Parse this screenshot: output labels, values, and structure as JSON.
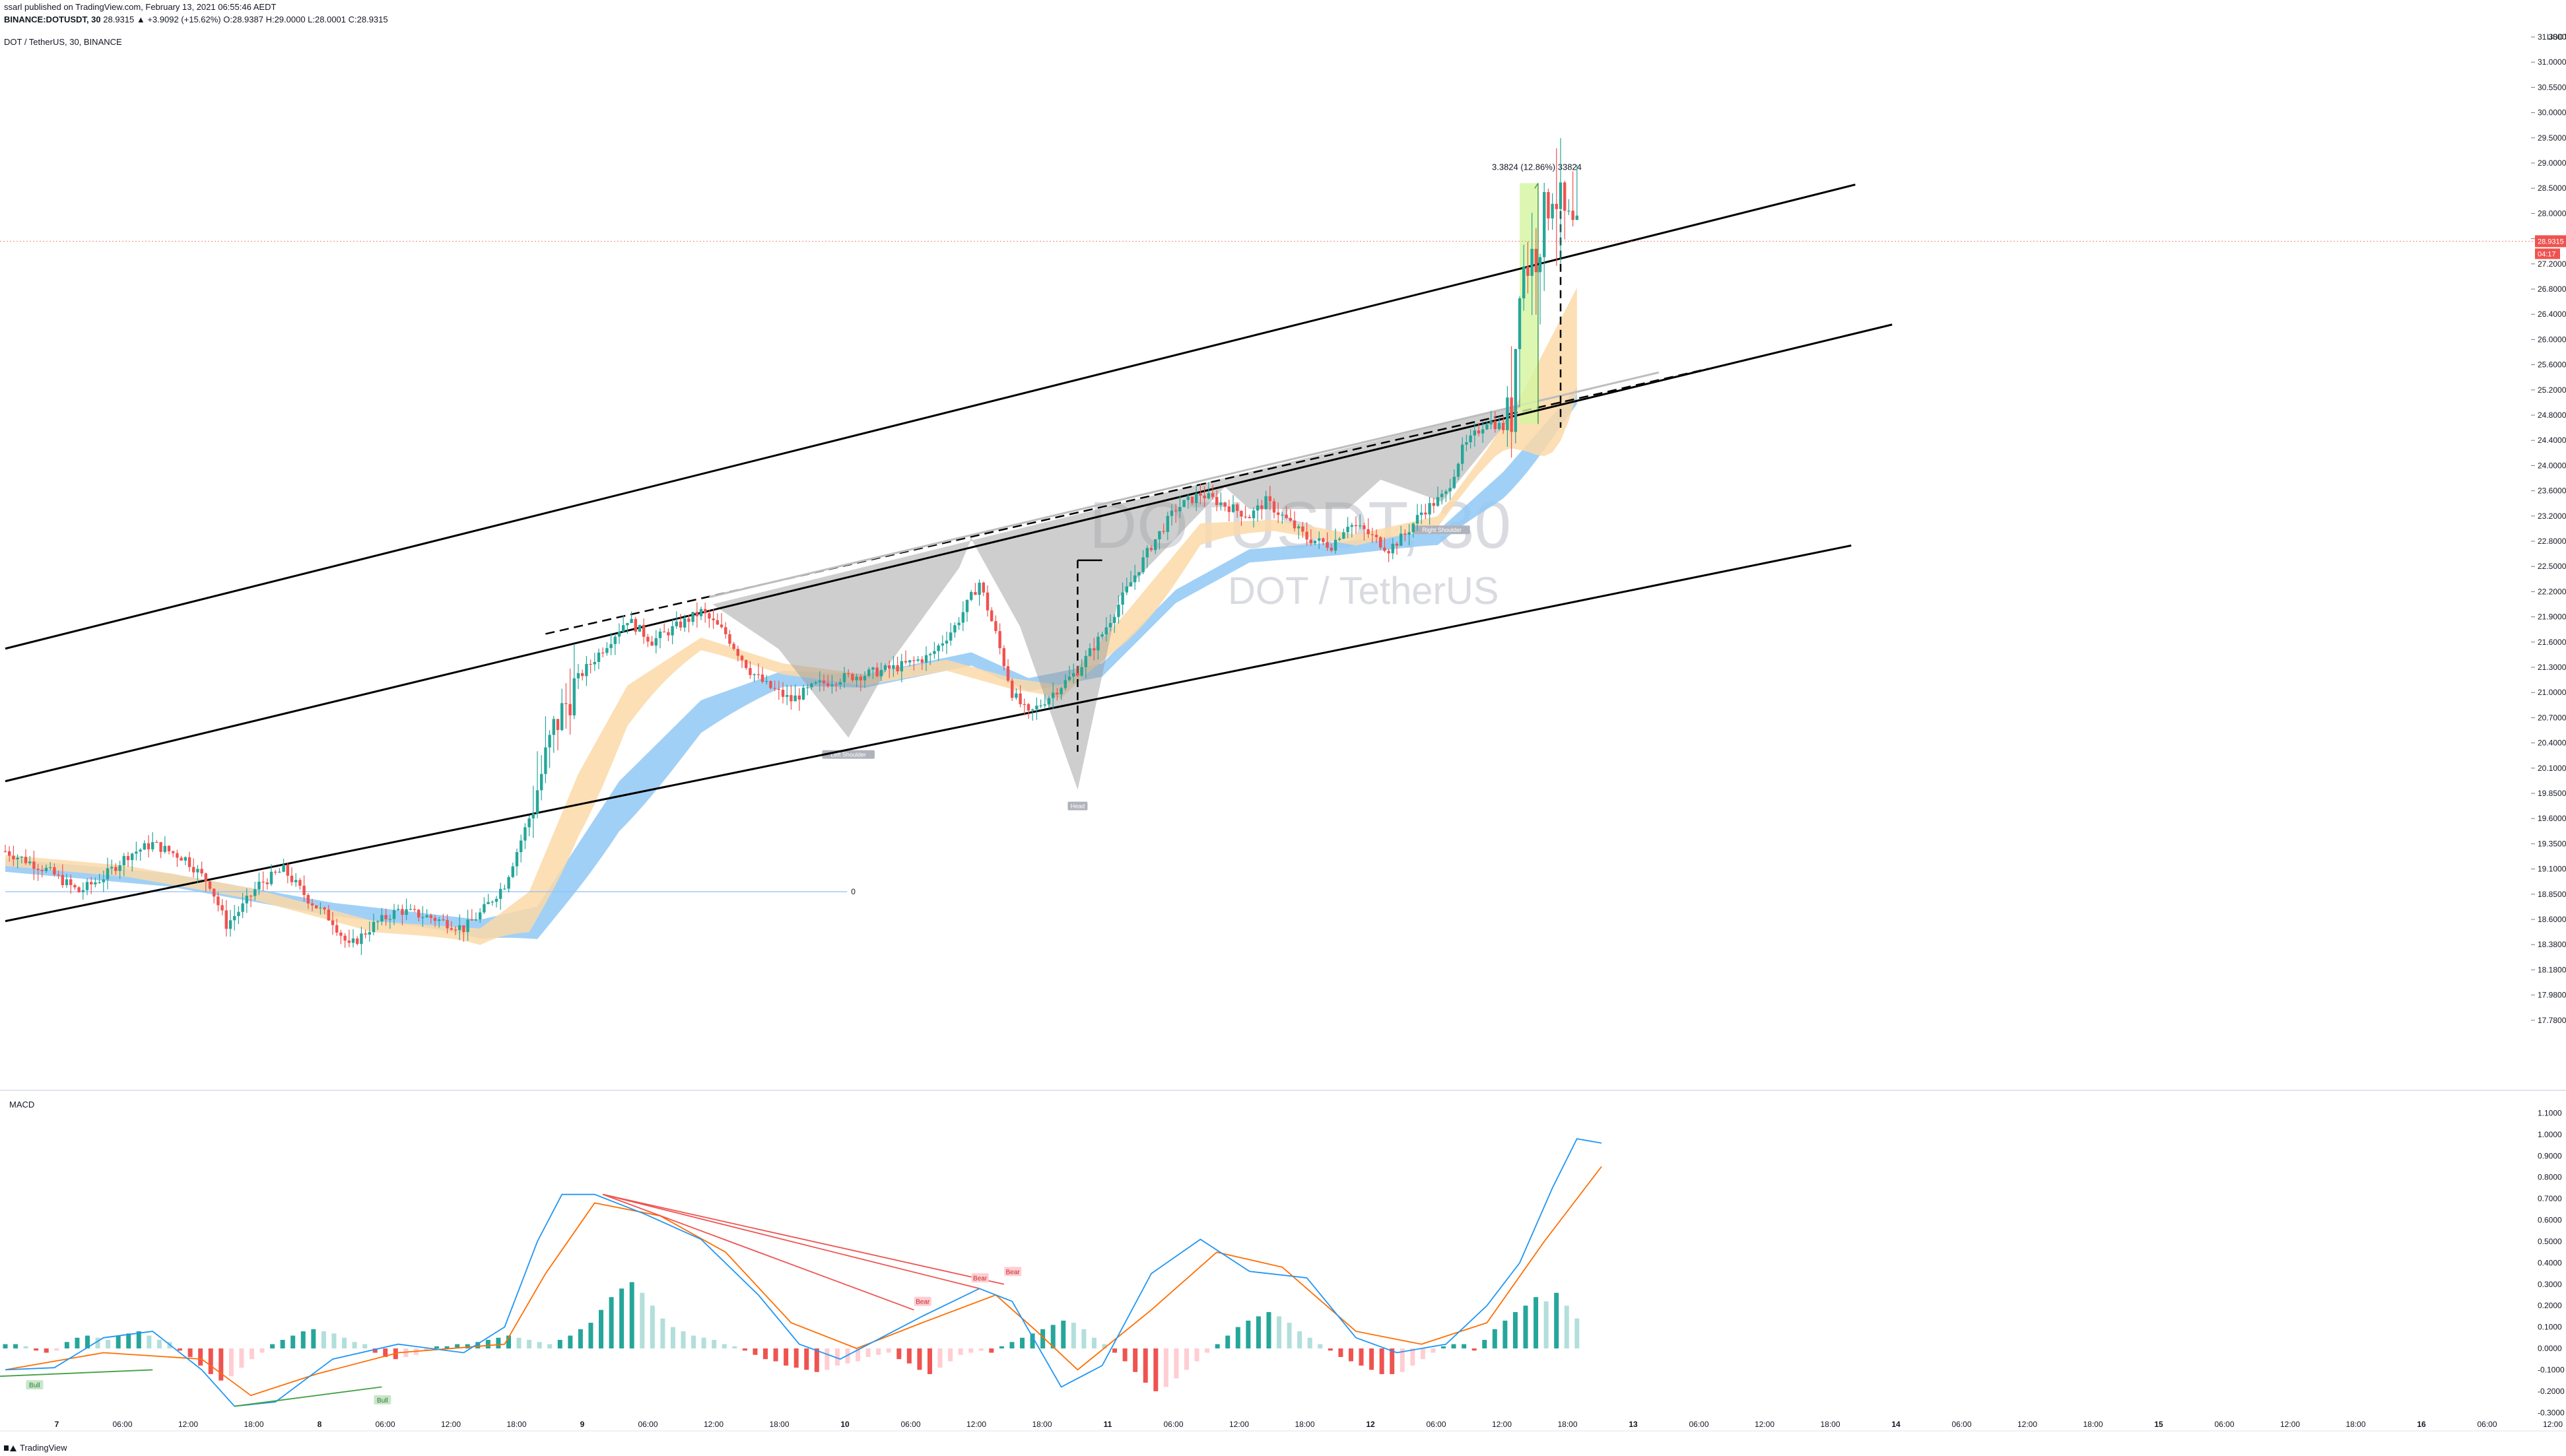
{
  "header": {
    "published": "ssarl published on TradingView.com, February 13, 2021 06:55:46 AEDT",
    "symbol": "BINANCE:DOTUSDT, 30",
    "ohlc": "28.9315 ▲ +3.9092 (+15.62%) O:28.9387 H:29.0000 L:28.0001 C:28.9315",
    "pane_title": "DOT / TetherUS, 30, BINANCE"
  },
  "watermark": {
    "symbol": "DOTUSDT, 30",
    "name": "DOT / TetherUS"
  },
  "currency": "USDT",
  "price_tag": "28.9315",
  "countdown_tag": "04:17",
  "measure_label": "3.3824 (12.86%) 33824",
  "fib_label": "0",
  "pattern_labels": {
    "left": "Left Shoulder",
    "head": "Head",
    "right": "Right Shoulder"
  },
  "divergence_labels": {
    "bull": "Bull",
    "bear": "Bear"
  },
  "macd_title": "MACD",
  "footer": "TradingView",
  "colors": {
    "up": "#26a69a",
    "down": "#ef5350",
    "ema_band_fast": "#fbd9a8",
    "ema_band_slow": "#90c8f5",
    "macd_line": "#2196f3",
    "signal_line": "#ff6d00",
    "hist_up_strong": "#26a69a",
    "hist_up_weak": "#b2dfdb",
    "hist_dn_strong": "#ef5350",
    "hist_dn_weak": "#ffcdd2",
    "channel": "#000000",
    "pattern_fill": "#9e9e9e",
    "measure_fill": "#d4f5a0"
  },
  "chart_data": [
    {
      "type": "candlestick",
      "title": "DOT / TetherUS, 30, BINANCE",
      "ylim": [
        17.6,
        31.4
      ],
      "y_ticks": [
        "31.3000",
        "31.0000",
        "30.5500",
        "30.0000",
        "29.5000",
        "29.0000",
        "28.5000",
        "28.0000",
        "27.6000",
        "27.2000",
        "26.8000",
        "26.4000",
        "26.0000",
        "25.6000",
        "25.2000",
        "24.8000",
        "24.4000",
        "24.0000",
        "23.6000",
        "23.2000",
        "22.8000",
        "22.5000",
        "22.2000",
        "21.9000",
        "21.6000",
        "21.3000",
        "21.0000",
        "20.7000",
        "20.4000",
        "20.1000",
        "19.8500",
        "19.6000",
        "19.3500",
        "19.1000",
        "18.8500",
        "18.6000",
        "18.3800",
        "18.1800",
        "17.9800",
        "17.7800"
      ],
      "x_ticks": [
        "7",
        "06:00",
        "12:00",
        "18:00",
        "8",
        "06:00",
        "12:00",
        "18:00",
        "9",
        "06:00",
        "12:00",
        "18:00",
        "10",
        "06:00",
        "12:00",
        "18:00",
        "11",
        "06:00",
        "12:00",
        "18:00",
        "12",
        "06:00",
        "12:00",
        "18:00",
        "13",
        "06:00",
        "12:00",
        "18:00",
        "14",
        "06:00",
        "12:00",
        "18:00",
        "15",
        "06:00",
        "12:00",
        "18:00",
        "16",
        "06:00",
        "12:00"
      ],
      "price_path": [
        [
          0,
          20.65
        ],
        [
          10,
          20.4
        ],
        [
          18,
          20.1
        ],
        [
          24,
          20.3
        ],
        [
          30,
          20.6
        ],
        [
          36,
          20.75
        ],
        [
          44,
          20.55
        ],
        [
          50,
          20.2
        ],
        [
          54,
          19.65
        ],
        [
          58,
          19.9
        ],
        [
          62,
          20.2
        ],
        [
          68,
          20.4
        ],
        [
          74,
          20.0
        ],
        [
          80,
          19.7
        ],
        [
          84,
          19.35
        ],
        [
          90,
          19.65
        ],
        [
          96,
          19.85
        ],
        [
          104,
          19.75
        ],
        [
          112,
          19.6
        ],
        [
          116,
          19.8
        ],
        [
          122,
          20.2
        ],
        [
          128,
          21.1
        ],
        [
          134,
          22.3
        ],
        [
          140,
          23.0
        ],
        [
          146,
          23.4
        ],
        [
          152,
          23.8
        ],
        [
          158,
          23.5
        ],
        [
          164,
          23.7
        ],
        [
          170,
          23.9
        ],
        [
          176,
          23.6
        ],
        [
          182,
          23.1
        ],
        [
          186,
          22.9
        ],
        [
          192,
          22.7
        ],
        [
          198,
          22.9
        ],
        [
          204,
          23.0
        ],
        [
          210,
          23.05
        ],
        [
          218,
          23.15
        ],
        [
          226,
          23.3
        ],
        [
          232,
          23.7
        ],
        [
          238,
          24.3
        ],
        [
          242,
          23.6
        ],
        [
          246,
          22.8
        ],
        [
          250,
          22.5
        ],
        [
          254,
          22.7
        ],
        [
          258,
          22.9
        ],
        [
          262,
          23.1
        ],
        [
          268,
          23.6
        ],
        [
          274,
          24.2
        ],
        [
          280,
          24.8
        ],
        [
          286,
          25.3
        ],
        [
          292,
          25.5
        ],
        [
          298,
          25.35
        ],
        [
          304,
          25.2
        ],
        [
          308,
          25.4
        ],
        [
          314,
          25.1
        ],
        [
          318,
          24.9
        ],
        [
          324,
          24.8
        ],
        [
          328,
          25.1
        ],
        [
          332,
          25.0
        ],
        [
          338,
          24.75
        ],
        [
          342,
          24.95
        ],
        [
          346,
          25.25
        ],
        [
          352,
          25.5
        ],
        [
          356,
          26.1
        ],
        [
          362,
          26.5
        ],
        [
          366,
          26.4
        ],
        [
          368,
          26.6
        ],
        [
          370,
          28.5
        ],
        [
          374,
          28.8
        ],
        [
          378,
          29.7
        ],
        [
          381,
          29.2
        ],
        [
          384,
          28.93
        ]
      ],
      "ema_fast_upper": [
        [
          0,
          20.6
        ],
        [
          30,
          20.45
        ],
        [
          60,
          20.15
        ],
        [
          90,
          19.7
        ],
        [
          116,
          19.6
        ],
        [
          128,
          20.1
        ],
        [
          140,
          21.7
        ],
        [
          152,
          22.9
        ],
        [
          170,
          23.55
        ],
        [
          190,
          23.2
        ],
        [
          210,
          23.05
        ],
        [
          230,
          23.25
        ],
        [
          246,
          23.0
        ],
        [
          258,
          22.9
        ],
        [
          274,
          23.9
        ],
        [
          292,
          25.1
        ],
        [
          310,
          25.15
        ],
        [
          330,
          24.95
        ],
        [
          350,
          25.2
        ],
        [
          362,
          26.1
        ],
        [
          370,
          26.8
        ],
        [
          384,
          28.3
        ]
      ],
      "ema_slow_upper": [
        [
          0,
          20.55
        ],
        [
          40,
          20.35
        ],
        [
          80,
          19.95
        ],
        [
          116,
          19.72
        ],
        [
          130,
          19.9
        ],
        [
          150,
          21.6
        ],
        [
          170,
          22.7
        ],
        [
          190,
          23.1
        ],
        [
          210,
          23.05
        ],
        [
          236,
          23.35
        ],
        [
          250,
          23.0
        ],
        [
          268,
          23.2
        ],
        [
          286,
          24.2
        ],
        [
          304,
          24.75
        ],
        [
          326,
          24.85
        ],
        [
          350,
          25.0
        ],
        [
          366,
          25.8
        ],
        [
          384,
          26.95
        ]
      ],
      "channel_lines": [
        {
          "x0": 0,
          "y0": 23.4,
          "x1": 452,
          "y1": 29.7
        },
        {
          "x0": 0,
          "y0": 21.6,
          "x1": 461,
          "y1": 27.8
        },
        {
          "x0": 0,
          "y0": 19.7,
          "x1": 451,
          "y1": 24.8
        }
      ],
      "neckline": {
        "x0": 132,
        "y0": 23.6,
        "x1": 416,
        "y1": 27.2
      },
      "pattern_points": [
        [
          173,
          24.0
        ],
        [
          189,
          23.4
        ],
        [
          206,
          22.2
        ],
        [
          216,
          23.2
        ],
        [
          233,
          24.5
        ],
        [
          236,
          24.9
        ],
        [
          248,
          23.7
        ],
        [
          262,
          21.5
        ],
        [
          272,
          24.1
        ],
        [
          298,
          25.6
        ],
        [
          304,
          25.3
        ],
        [
          328,
          25.3
        ],
        [
          336,
          25.7
        ],
        [
          351,
          25.4
        ],
        [
          370,
          26.7
        ]
      ],
      "measure_box": {
        "x0": 370,
        "x1": 374.5,
        "y0": 26.45,
        "y1": 29.72
      },
      "horizontal_level": {
        "y": 20.1,
        "x0": 0,
        "x1": 196
      },
      "last_price": 28.9315
    },
    {
      "type": "macd",
      "title": "MACD",
      "ylim": [
        -0.33,
        1.12
      ],
      "y_ticks": [
        "1.1000",
        "1.0000",
        "0.9000",
        "0.8000",
        "0.7000",
        "0.6000",
        "0.5000",
        "0.4000",
        "0.3000",
        "0.2000",
        "0.1000",
        "0.0000",
        "-0.1000",
        "-0.2000",
        "-0.3000"
      ],
      "macd_path": [
        [
          0,
          -0.1
        ],
        [
          12,
          -0.09
        ],
        [
          24,
          0.05
        ],
        [
          36,
          0.08
        ],
        [
          48,
          -0.1
        ],
        [
          56,
          -0.27
        ],
        [
          66,
          -0.25
        ],
        [
          80,
          -0.05
        ],
        [
          96,
          0.02
        ],
        [
          112,
          -0.02
        ],
        [
          122,
          0.1
        ],
        [
          130,
          0.5
        ],
        [
          136,
          0.72
        ],
        [
          144,
          0.72
        ],
        [
          156,
          0.63
        ],
        [
          170,
          0.51
        ],
        [
          184,
          0.25
        ],
        [
          194,
          0.02
        ],
        [
          204,
          -0.05
        ],
        [
          214,
          0.05
        ],
        [
          224,
          0.15
        ],
        [
          238,
          0.28
        ],
        [
          246,
          0.22
        ],
        [
          258,
          -0.18
        ],
        [
          268,
          -0.08
        ],
        [
          280,
          0.35
        ],
        [
          292,
          0.51
        ],
        [
          304,
          0.36
        ],
        [
          318,
          0.33
        ],
        [
          330,
          0.05
        ],
        [
          340,
          -0.02
        ],
        [
          352,
          0.02
        ],
        [
          362,
          0.2
        ],
        [
          370,
          0.4
        ],
        [
          378,
          0.75
        ],
        [
          384,
          0.98
        ],
        [
          390,
          0.96
        ]
      ],
      "signal_path": [
        [
          0,
          -0.1
        ],
        [
          24,
          -0.02
        ],
        [
          48,
          -0.05
        ],
        [
          60,
          -0.22
        ],
        [
          76,
          -0.12
        ],
        [
          96,
          -0.02
        ],
        [
          122,
          0.02
        ],
        [
          132,
          0.35
        ],
        [
          144,
          0.68
        ],
        [
          160,
          0.62
        ],
        [
          176,
          0.45
        ],
        [
          192,
          0.12
        ],
        [
          208,
          0.0
        ],
        [
          224,
          0.12
        ],
        [
          242,
          0.25
        ],
        [
          252,
          0.08
        ],
        [
          262,
          -0.1
        ],
        [
          280,
          0.18
        ],
        [
          296,
          0.45
        ],
        [
          312,
          0.38
        ],
        [
          330,
          0.08
        ],
        [
          346,
          0.02
        ],
        [
          362,
          0.12
        ],
        [
          376,
          0.5
        ],
        [
          390,
          0.85
        ]
      ],
      "histogram": [
        0.02,
        0.02,
        0.01,
        -0.01,
        -0.02,
        -0.01,
        0.03,
        0.05,
        0.06,
        0.05,
        0.04,
        0.06,
        0.07,
        0.08,
        0.06,
        0.04,
        0.03,
        -0.01,
        -0.04,
        -0.08,
        -0.12,
        -0.15,
        -0.13,
        -0.09,
        -0.05,
        -0.02,
        0.02,
        0.04,
        0.06,
        0.08,
        0.09,
        0.08,
        0.07,
        0.05,
        0.03,
        0.02,
        -0.02,
        -0.04,
        -0.05,
        -0.04,
        -0.03,
        -0.01,
        0.01,
        0.01,
        0.02,
        0.02,
        0.03,
        0.04,
        0.05,
        0.06,
        0.05,
        0.04,
        0.03,
        0.02,
        0.04,
        0.06,
        0.09,
        0.12,
        0.18,
        0.24,
        0.28,
        0.31,
        0.26,
        0.2,
        0.14,
        0.1,
        0.08,
        0.06,
        0.05,
        0.04,
        0.02,
        0.01,
        -0.01,
        -0.03,
        -0.05,
        -0.06,
        -0.08,
        -0.09,
        -0.1,
        -0.11,
        -0.1,
        -0.08,
        -0.07,
        -0.06,
        -0.04,
        -0.03,
        -0.02,
        -0.05,
        -0.07,
        -0.1,
        -0.12,
        -0.09,
        -0.06,
        -0.03,
        -0.02,
        -0.01,
        -0.02,
        0.01,
        0.03,
        0.05,
        0.07,
        0.09,
        0.11,
        0.13,
        0.12,
        0.09,
        0.05,
        0.02,
        -0.02,
        -0.06,
        -0.11,
        -0.16,
        -0.2,
        -0.18,
        -0.14,
        -0.1,
        -0.06,
        -0.02,
        0.02,
        0.06,
        0.1,
        0.13,
        0.15,
        0.17,
        0.15,
        0.12,
        0.08,
        0.05,
        0.02,
        -0.01,
        -0.04,
        -0.06,
        -0.08,
        -0.1,
        -0.12,
        -0.12,
        -0.11,
        -0.08,
        -0.05,
        -0.02,
        0.01,
        0.02,
        0.02,
        -0.01,
        0.04,
        0.09,
        0.13,
        0.17,
        0.2,
        0.24,
        0.22,
        0.26,
        0.2,
        0.14
      ]
    }
  ]
}
